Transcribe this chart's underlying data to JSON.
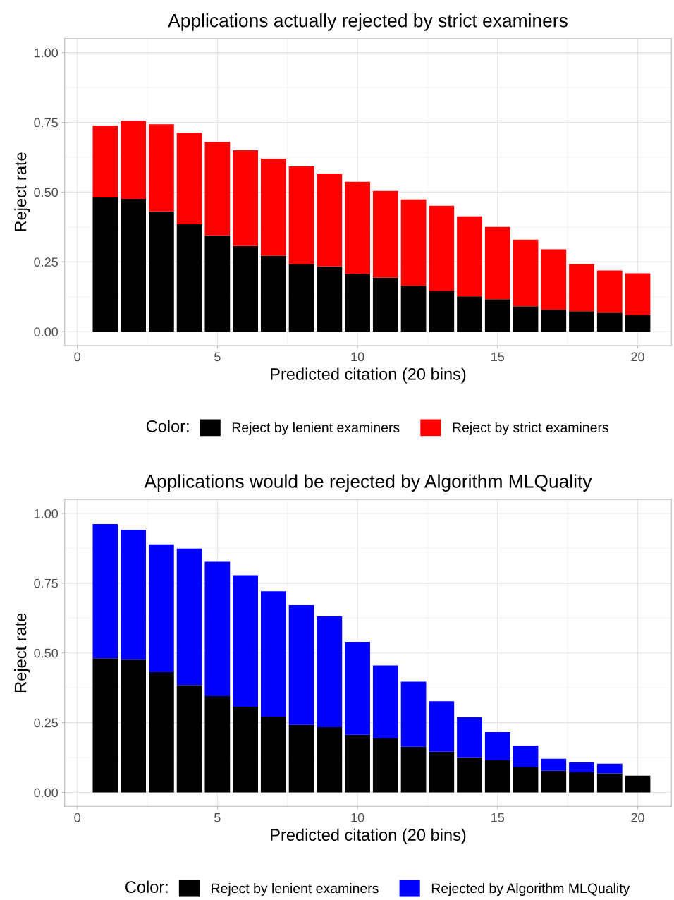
{
  "chart_data": [
    {
      "type": "bar",
      "stacked": true,
      "title": "Applications actually rejected by strict examiners",
      "xlabel": "Predicted citation (20 bins)",
      "ylabel": "Reject rate",
      "legend_title": "Color:",
      "legend": "bottom",
      "grid": true,
      "x": [
        1,
        2,
        3,
        4,
        5,
        6,
        7,
        8,
        9,
        10,
        11,
        12,
        13,
        14,
        15,
        16,
        17,
        18,
        19,
        20
      ],
      "series": [
        {
          "name": "Reject by lenient examiners",
          "color": "#000000",
          "values": [
            0.481,
            0.476,
            0.431,
            0.385,
            0.345,
            0.307,
            0.272,
            0.242,
            0.234,
            0.207,
            0.194,
            0.164,
            0.146,
            0.126,
            0.116,
            0.091,
            0.078,
            0.073,
            0.068,
            0.06
          ]
        },
        {
          "name": "Reject by strict examiners",
          "color": "#ff0000",
          "values": [
            0.257,
            0.28,
            0.312,
            0.328,
            0.335,
            0.343,
            0.348,
            0.35,
            0.333,
            0.33,
            0.31,
            0.31,
            0.305,
            0.287,
            0.259,
            0.239,
            0.217,
            0.169,
            0.151,
            0.149
          ]
        }
      ],
      "xlim": [
        -0.45,
        21.2
      ],
      "xticks": [
        0,
        5,
        10,
        15,
        20
      ],
      "ylim": [
        -0.05,
        1.05
      ],
      "yticks": [
        {
          "value": 0,
          "label": "0.00"
        },
        {
          "value": 0.25,
          "label": "0.25"
        },
        {
          "value": 0.5,
          "label": "0.50"
        },
        {
          "value": 0.75,
          "label": "0.75"
        },
        {
          "value": 1,
          "label": "1.00"
        }
      ]
    },
    {
      "type": "bar",
      "stacked": true,
      "title": "Applications would be rejected by Algorithm MLQuality",
      "xlabel": "Predicted citation (20 bins)",
      "ylabel": "Reject rate",
      "legend_title": "Color:",
      "legend": "bottom",
      "grid": true,
      "x": [
        1,
        2,
        3,
        4,
        5,
        6,
        7,
        8,
        9,
        10,
        11,
        12,
        13,
        14,
        15,
        16,
        17,
        18,
        19,
        20
      ],
      "series": [
        {
          "name": "Reject by lenient examiners",
          "color": "#000000",
          "values": [
            0.481,
            0.476,
            0.431,
            0.385,
            0.345,
            0.307,
            0.272,
            0.242,
            0.234,
            0.207,
            0.194,
            0.164,
            0.146,
            0.126,
            0.116,
            0.091,
            0.078,
            0.073,
            0.068,
            0.06
          ]
        },
        {
          "name": "Rejected by Algorithm MLQuality",
          "color": "#0000ff",
          "values": [
            0.481,
            0.466,
            0.458,
            0.489,
            0.482,
            0.472,
            0.449,
            0.429,
            0.397,
            0.333,
            0.261,
            0.233,
            0.181,
            0.143,
            0.1,
            0.077,
            0.043,
            0.035,
            0.035,
            0
          ]
        }
      ],
      "xlim": [
        -0.45,
        21.2
      ],
      "xticks": [
        0,
        5,
        10,
        15,
        20
      ],
      "ylim": [
        -0.05,
        1.05
      ],
      "yticks": [
        {
          "value": 0,
          "label": "0.00"
        },
        {
          "value": 0.25,
          "label": "0.25"
        },
        {
          "value": 0.5,
          "label": "0.50"
        },
        {
          "value": 0.75,
          "label": "0.75"
        },
        {
          "value": 1,
          "label": "1.00"
        }
      ]
    }
  ]
}
